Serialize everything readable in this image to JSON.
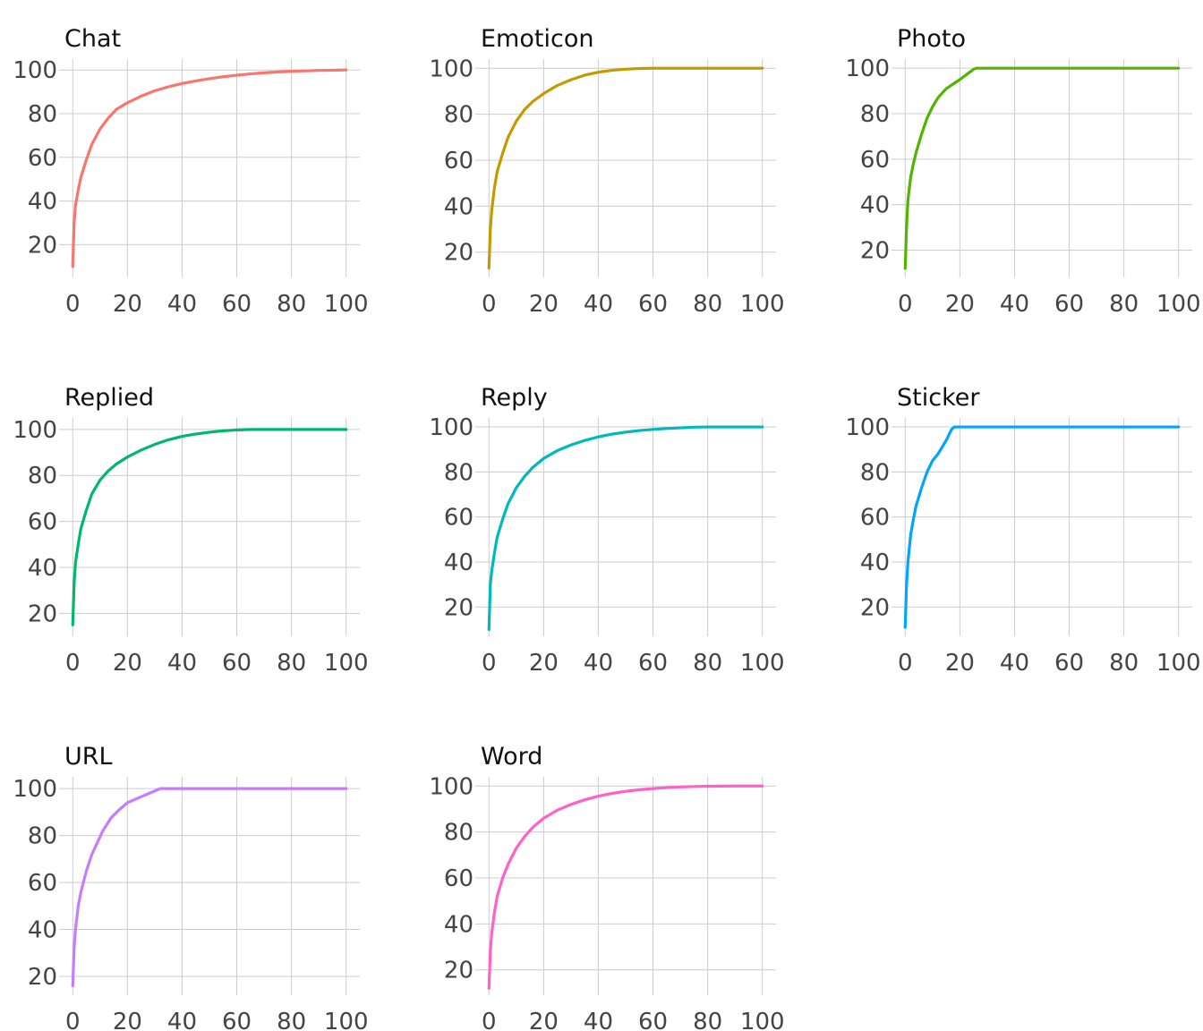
{
  "chart_data": [
    {
      "type": "line",
      "title": "Chat",
      "color": "#F8766D",
      "xlim": [
        0,
        100
      ],
      "ylim": [
        5,
        105
      ],
      "x_ticks": [
        0,
        20,
        40,
        60,
        80,
        100
      ],
      "y_ticks": [
        20,
        40,
        60,
        80,
        100
      ],
      "x": [
        0,
        0.5,
        1,
        2,
        3,
        5,
        7,
        10,
        13,
        16,
        20,
        25,
        30,
        35,
        40,
        45,
        50,
        55,
        60,
        65,
        70,
        75,
        80,
        85,
        90,
        95,
        100
      ],
      "y": [
        10,
        30,
        38,
        45,
        51,
        59,
        66,
        73,
        78,
        82,
        85,
        88,
        90.5,
        92.3,
        93.8,
        95,
        96,
        96.9,
        97.6,
        98.2,
        98.7,
        99.1,
        99.4,
        99.6,
        99.8,
        99.9,
        100
      ]
    },
    {
      "type": "line",
      "title": "Emoticon",
      "color": "#C49A00",
      "xlim": [
        0,
        100
      ],
      "ylim": [
        9,
        104
      ],
      "x_ticks": [
        0,
        20,
        40,
        60,
        80,
        100
      ],
      "y_ticks": [
        20,
        40,
        60,
        80,
        100
      ],
      "x": [
        0,
        0.5,
        1,
        2,
        3,
        5,
        7,
        10,
        13,
        16,
        20,
        25,
        30,
        35,
        40,
        45,
        50,
        55,
        60,
        70,
        80,
        90,
        100
      ],
      "y": [
        13,
        30,
        38,
        48,
        55,
        63,
        70,
        77,
        82,
        85.5,
        89,
        92.5,
        95,
        97,
        98.3,
        99.1,
        99.6,
        99.9,
        100,
        100,
        100,
        100,
        100
      ]
    },
    {
      "type": "line",
      "title": "Photo",
      "color": "#53B400",
      "xlim": [
        0,
        100
      ],
      "ylim": [
        8,
        104
      ],
      "x_ticks": [
        0,
        20,
        40,
        60,
        80,
        100
      ],
      "y_ticks": [
        20,
        40,
        60,
        80,
        100
      ],
      "x": [
        0,
        0.5,
        1,
        2,
        3,
        4,
        6,
        8,
        10,
        12,
        15,
        20,
        25,
        26,
        30,
        40,
        60,
        80,
        100
      ],
      "y": [
        12,
        30,
        42,
        52,
        58,
        63,
        71,
        78,
        83,
        87,
        91,
        95,
        99.5,
        100,
        100,
        100,
        100,
        100,
        100
      ]
    },
    {
      "type": "line",
      "title": "Replied",
      "color": "#00B86C",
      "xlim": [
        0,
        100
      ],
      "ylim": [
        10,
        105
      ],
      "x_ticks": [
        0,
        20,
        40,
        60,
        80,
        100
      ],
      "y_ticks": [
        20,
        40,
        60,
        80,
        100
      ],
      "x": [
        0,
        0.5,
        1,
        2,
        3,
        5,
        7,
        10,
        13,
        16,
        20,
        25,
        30,
        35,
        40,
        45,
        50,
        55,
        60,
        65,
        70,
        80,
        90,
        100
      ],
      "y": [
        15,
        33,
        42,
        50,
        57,
        65,
        72,
        78,
        82,
        85,
        88,
        91,
        93.5,
        95.5,
        97,
        98,
        98.8,
        99.4,
        99.8,
        100,
        100,
        100,
        100,
        100
      ]
    },
    {
      "type": "line",
      "title": "Reply",
      "color": "#00B9BD",
      "xlim": [
        0,
        100
      ],
      "ylim": [
        7,
        104
      ],
      "x_ticks": [
        0,
        20,
        40,
        60,
        80,
        100
      ],
      "y_ticks": [
        20,
        40,
        60,
        80,
        100
      ],
      "x": [
        0,
        0.5,
        1,
        2,
        3,
        5,
        7,
        10,
        13,
        16,
        20,
        25,
        30,
        35,
        40,
        45,
        50,
        55,
        60,
        65,
        70,
        75,
        80,
        90,
        100
      ],
      "y": [
        10,
        30,
        36,
        44,
        51,
        59,
        66,
        73,
        78,
        82,
        86,
        89.5,
        92,
        94,
        95.6,
        96.8,
        97.7,
        98.4,
        98.9,
        99.3,
        99.6,
        99.9,
        100,
        100,
        100
      ]
    },
    {
      "type": "line",
      "title": "Sticker",
      "color": "#00A5FF",
      "xlim": [
        0,
        100
      ],
      "ylim": [
        7,
        104
      ],
      "x_ticks": [
        0,
        20,
        40,
        60,
        80,
        100
      ],
      "y_ticks": [
        20,
        40,
        60,
        80,
        100
      ],
      "x": [
        0,
        0.5,
        1,
        2,
        3,
        4,
        6,
        8,
        10,
        12,
        15,
        17,
        18,
        20,
        40,
        60,
        80,
        100
      ],
      "y": [
        11,
        30,
        40,
        52,
        59,
        65,
        73,
        80,
        85,
        88,
        94,
        99,
        100,
        100,
        100,
        100,
        100,
        100
      ]
    },
    {
      "type": "line",
      "title": "URL",
      "color": "#C77CFF",
      "xlim": [
        0,
        100
      ],
      "ylim": [
        12,
        105
      ],
      "x_ticks": [
        0,
        20,
        40,
        60,
        80,
        100
      ],
      "y_ticks": [
        20,
        40,
        60,
        80,
        100
      ],
      "x": [
        0,
        0.5,
        1,
        2,
        3,
        5,
        7,
        9,
        11,
        14,
        17,
        20,
        25,
        30,
        32,
        40,
        60,
        80,
        100
      ],
      "y": [
        16,
        32,
        40,
        50,
        56,
        65,
        72,
        77,
        82,
        87.5,
        91,
        94,
        96.5,
        99,
        100,
        100,
        100,
        100,
        100
      ]
    },
    {
      "type": "line",
      "title": "Word",
      "color": "#FF61C9",
      "xlim": [
        0,
        100
      ],
      "ylim": [
        9,
        104
      ],
      "x_ticks": [
        0,
        20,
        40,
        60,
        80,
        100
      ],
      "y_ticks": [
        20,
        40,
        60,
        80,
        100
      ],
      "x": [
        0,
        0.5,
        1,
        2,
        3,
        5,
        7,
        10,
        13,
        16,
        20,
        25,
        30,
        35,
        40,
        45,
        50,
        55,
        60,
        65,
        70,
        75,
        80,
        90,
        100
      ],
      "y": [
        12,
        28,
        36,
        45,
        52,
        60,
        66,
        73,
        78,
        82,
        86,
        89.5,
        92,
        94,
        95.6,
        96.8,
        97.7,
        98.4,
        98.9,
        99.3,
        99.6,
        99.8,
        99.9,
        100,
        100
      ]
    }
  ]
}
